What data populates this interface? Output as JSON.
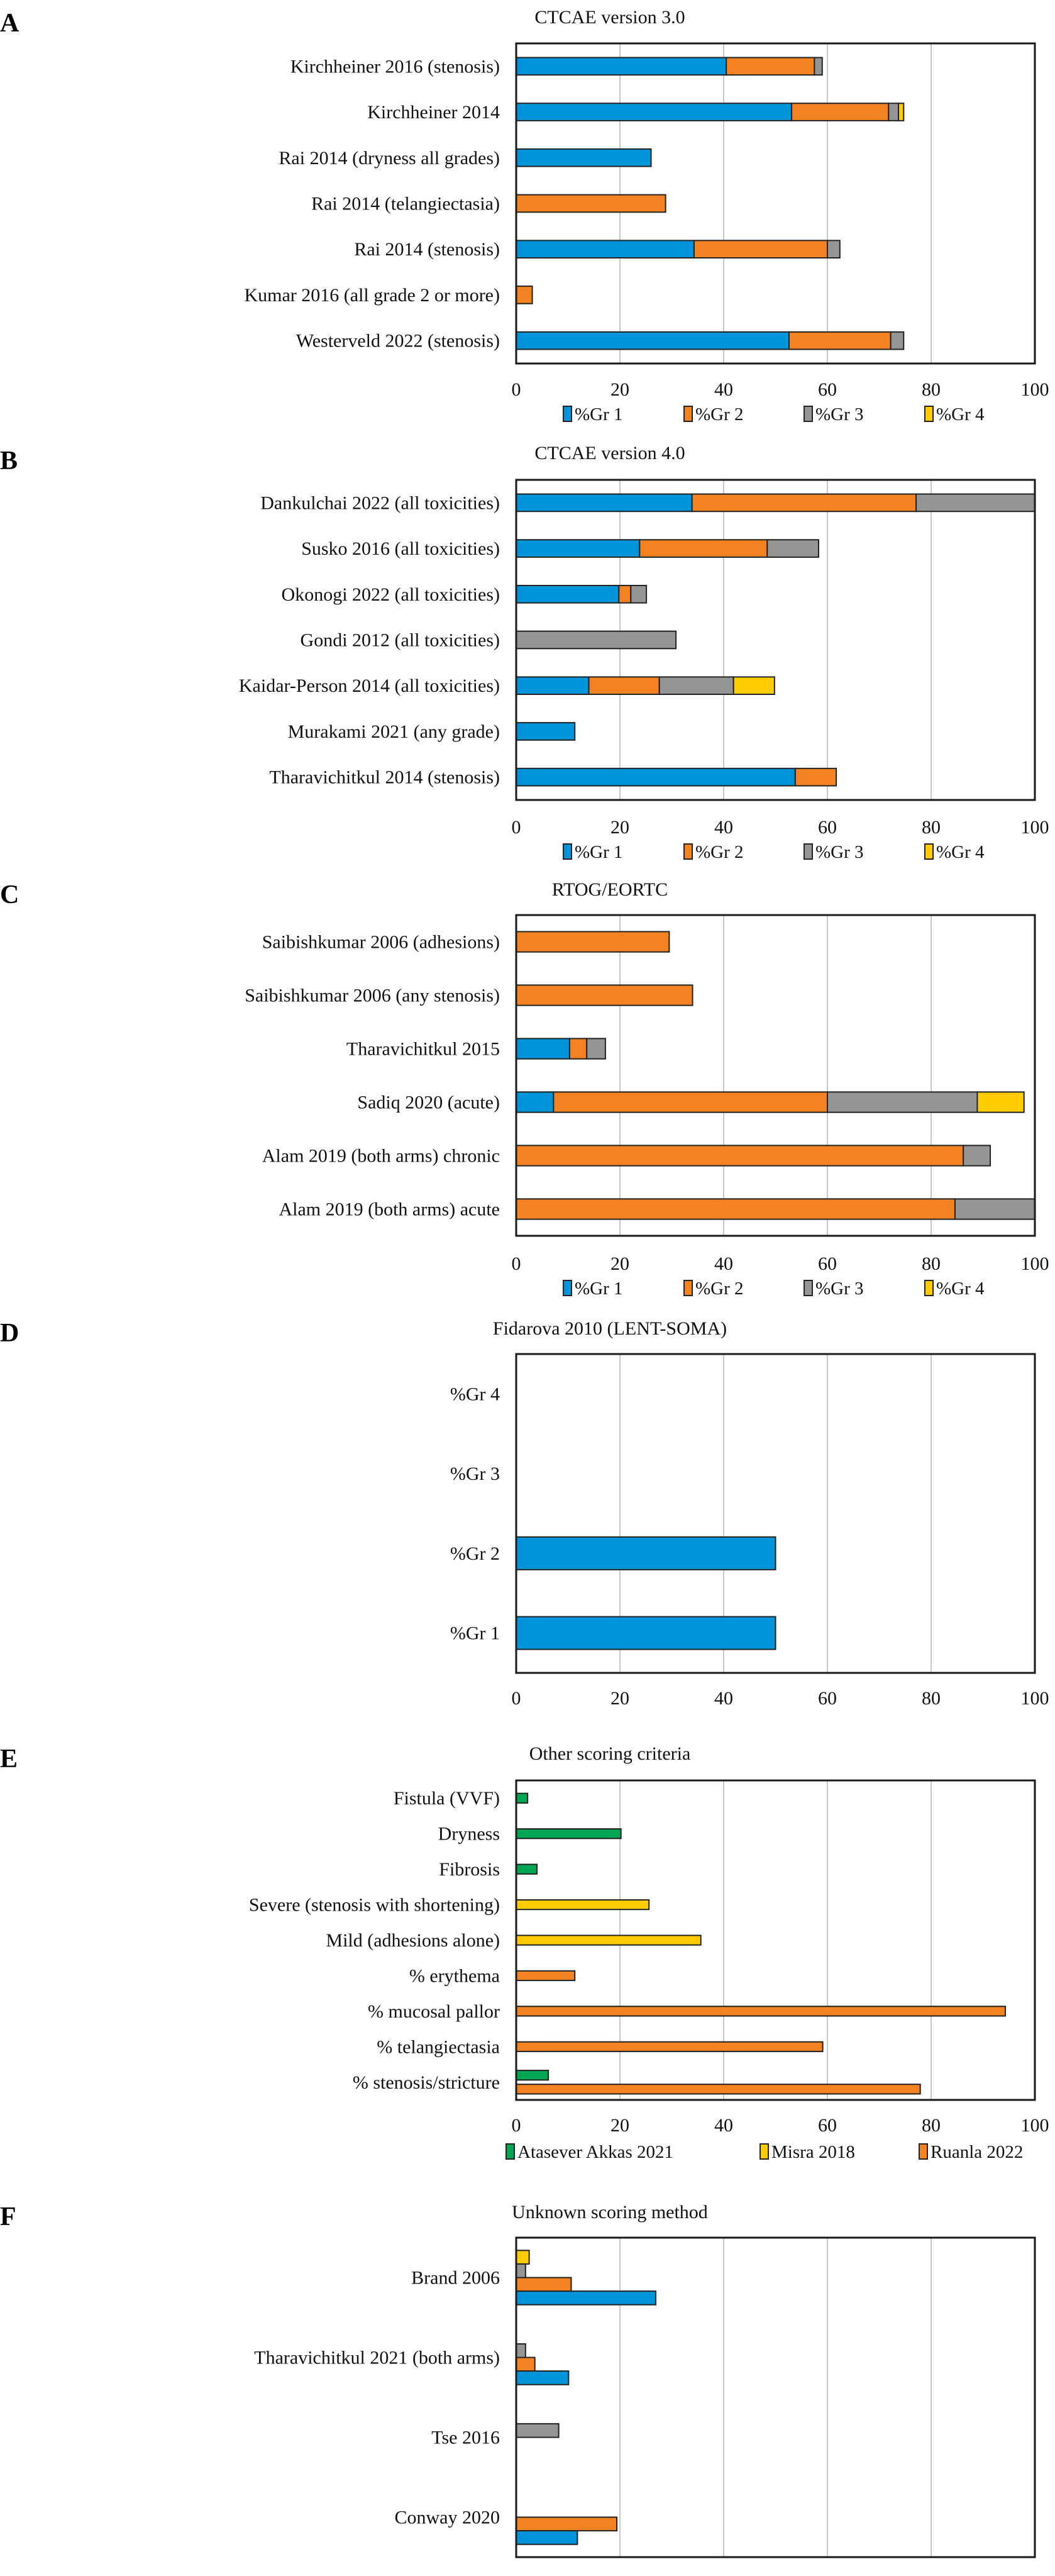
{
  "colors": {
    "gr1": "#0095DA",
    "gr2": "#F28222",
    "gr3": "#959595",
    "gr4": "#FFCC00",
    "green": "#00A651"
  },
  "chart_data": [
    {
      "panel": "A",
      "type": "bar",
      "orientation": "horizontal",
      "stacked": true,
      "title": "CTCAE version 3.0",
      "categories": [
        "Kirchheiner 2016 (stenosis)",
        "Kirchheiner 2014",
        "Rai 2014 (dryness all grades)",
        "Rai 2014 (telangiectasia)",
        "Rai 2014 (stenosis)",
        "Kumar 2016 (all grade 2 or more)",
        "Westerveld 2022 (stenosis)"
      ],
      "series": [
        {
          "name": "%Gr 1",
          "color": "#0095DA",
          "values": [
            40.5,
            53.1,
            26,
            0,
            34.3,
            0,
            52.6
          ]
        },
        {
          "name": "%Gr 2",
          "color": "#F28222",
          "values": [
            17,
            18.7,
            0,
            28.8,
            25.7,
            3.1,
            19.6
          ]
        },
        {
          "name": "%Gr 3",
          "color": "#959595",
          "values": [
            1.5,
            1.9,
            0,
            0,
            2.4,
            0,
            2.5
          ]
        },
        {
          "name": "%Gr 4",
          "color": "#FFCC00",
          "values": [
            0,
            1,
            0,
            0,
            0,
            0,
            0
          ]
        }
      ],
      "xlim": [
        0,
        100
      ],
      "xticks": [
        "0",
        "20",
        "40",
        "60",
        "80",
        "100"
      ],
      "grid": true,
      "legend": "bottom"
    },
    {
      "panel": "B",
      "type": "bar",
      "orientation": "horizontal",
      "stacked": true,
      "title": "CTCAE version 4.0",
      "categories": [
        "Dankulchai 2022 (all toxicities)",
        "Susko 2016 (all toxicities)",
        "Okonogi 2022 (all toxicities)",
        "Gondi 2012 (all toxicities)",
        "Kaidar-Person 2014 (all toxicities)",
        "Murakami 2021 (any grade)",
        "Tharavichitkul 2014 (stenosis)"
      ],
      "series": [
        {
          "name": "%Gr 1",
          "color": "#0095DA",
          "values": [
            33.9,
            23.8,
            19.8,
            0,
            14,
            11.3,
            53.8
          ]
        },
        {
          "name": "%Gr 2",
          "color": "#F28222",
          "values": [
            43.2,
            24.6,
            2.3,
            0,
            13.6,
            0,
            7.9
          ]
        },
        {
          "name": "%Gr 3",
          "color": "#959595",
          "values": [
            22.9,
            9.9,
            3,
            30.8,
            14.3,
            0,
            0
          ]
        },
        {
          "name": "%Gr 4",
          "color": "#FFCC00",
          "values": [
            0,
            0,
            0,
            0,
            7.9,
            0,
            0
          ]
        }
      ],
      "xlim": [
        0,
        100
      ],
      "xticks": [
        "0",
        "20",
        "40",
        "60",
        "80",
        "100"
      ],
      "grid": true,
      "legend": "bottom"
    },
    {
      "panel": "C",
      "type": "bar",
      "orientation": "horizontal",
      "stacked": true,
      "title": "RTOG/EORTC",
      "categories": [
        "Saibishkumar 2006 (adhesions)",
        "Saibishkumar 2006 (any stenosis)",
        "Tharavichitkul 2015",
        "Sadiq 2020 (acute)",
        "Alam 2019 (both arms) chronic",
        "Alam 2019 (both arms) acute"
      ],
      "series": [
        {
          "name": "%Gr 1",
          "color": "#0095DA",
          "values": [
            0,
            0,
            10.3,
            7.2,
            0,
            0
          ]
        },
        {
          "name": "%Gr 2",
          "color": "#F28222",
          "values": [
            29.5,
            34,
            3.3,
            52.8,
            86.2,
            84.6
          ]
        },
        {
          "name": "%Gr 3",
          "color": "#959595",
          "values": [
            0,
            0,
            3.6,
            28.9,
            5.2,
            15.4
          ]
        },
        {
          "name": "%Gr 4",
          "color": "#FFCC00",
          "values": [
            0,
            0,
            0,
            9,
            0,
            0
          ]
        }
      ],
      "xlim": [
        0,
        100
      ],
      "xticks": [
        "0",
        "20",
        "40",
        "60",
        "80",
        "100"
      ],
      "grid": true,
      "legend": "bottom"
    },
    {
      "panel": "D",
      "type": "bar",
      "orientation": "horizontal",
      "stacked": false,
      "title": "Fidarova 2010 (LENT-SOMA)",
      "categories": [
        "%Gr 4",
        "%Gr 3",
        "%Gr 2",
        "%Gr 1"
      ],
      "series": [
        {
          "color": "#0095DA",
          "values": [
            0,
            0,
            50,
            50
          ]
        }
      ],
      "xlim": [
        0,
        100
      ],
      "xticks": [
        "0",
        "20",
        "40",
        "60",
        "80",
        "100"
      ],
      "grid": true,
      "legend": "none"
    },
    {
      "panel": "E",
      "type": "bar",
      "orientation": "horizontal",
      "stacked": false,
      "title": "Other scoring criteria",
      "categories": [
        "Fistula (VVF)",
        "Dryness",
        "Fibrosis",
        "Severe (stenosis with shortening)",
        "Mild (adhesions alone)",
        "% erythema",
        "% mucosal pallor",
        "% telangiectasia",
        "% stenosis/stricture"
      ],
      "series": [
        {
          "name": "Atasever Akkas 2021",
          "color": "#00A651",
          "values": [
            2.2,
            20.2,
            4,
            null,
            null,
            null,
            null,
            null,
            6.2
          ]
        },
        {
          "name": "Misra 2018",
          "color": "#FFCC00",
          "values": [
            null,
            null,
            null,
            25.6,
            35.6,
            null,
            null,
            null,
            null
          ]
        },
        {
          "name": "Ruanla 2022",
          "color": "#F28222",
          "values": [
            null,
            null,
            null,
            null,
            null,
            11.3,
            94.3,
            59.1,
            77.9
          ]
        }
      ],
      "xlim": [
        0,
        100
      ],
      "xticks": [
        "0",
        "20",
        "40",
        "60",
        "80",
        "100"
      ],
      "grid": true,
      "legend": "bottom"
    },
    {
      "panel": "F",
      "type": "bar",
      "orientation": "horizontal",
      "stacked": false,
      "title": "Unknown scoring method",
      "categories": [
        "Brand 2006",
        "Tharavichitkul 2021 (both arms)",
        "Tse 2016",
        "Conway 2020"
      ],
      "series": [
        {
          "color": "#FFCC00",
          "values": [
            2.5,
            null,
            null,
            null
          ]
        },
        {
          "color": "#959595",
          "values": [
            1.8,
            1.8,
            8.2,
            null
          ]
        },
        {
          "color": "#F28222",
          "values": [
            10.6,
            3.6,
            null,
            19.4
          ]
        },
        {
          "color": "#0095DA",
          "values": [
            26.9,
            10.1,
            null,
            11.8
          ]
        }
      ],
      "xlim": [
        0,
        100
      ],
      "grid": true,
      "legend": "none"
    }
  ]
}
